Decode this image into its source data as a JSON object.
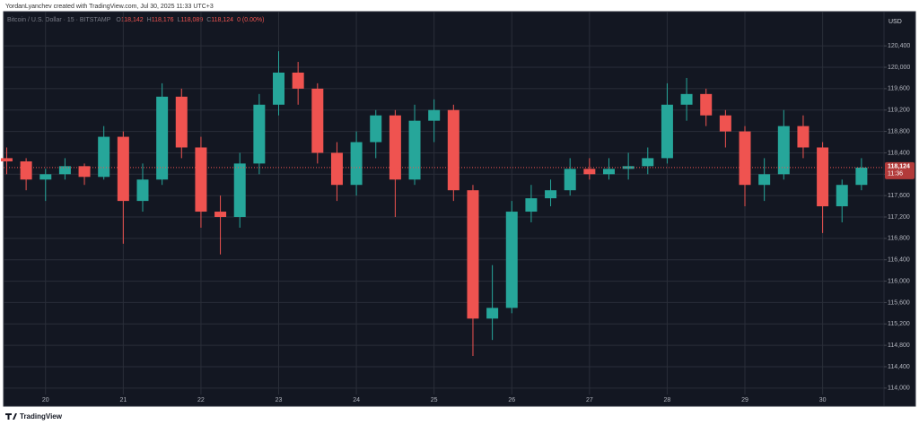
{
  "header": "YordanLyanchev created with TradingView.com, Jul 30, 2025 11:33 UTC+3",
  "footer": "TradingView",
  "chart_data": {
    "type": "candlestick",
    "symbol": "Bitcoin / U.S. Dollar · 15 · BITSTAMP",
    "legend": [
      {
        "key": "O",
        "value": 118142,
        "label": "118,142"
      },
      {
        "key": "H",
        "value": 118176,
        "label": "118,176"
      },
      {
        "key": "L",
        "value": 118089,
        "label": "118,089"
      },
      {
        "key": "C",
        "value": 118124,
        "label": "118,124"
      }
    ],
    "change": {
      "value": 0,
      "label": "0 (0.00%)"
    },
    "currency": "USD",
    "last_price": {
      "value": 118124,
      "label": "118,124"
    },
    "countdown": "11:36",
    "up_color": "#26a69a",
    "down_color": "#ef5350",
    "grid": true,
    "x": [
      19.5,
      19.75,
      20,
      20.25,
      20.5,
      20.75,
      21,
      21.25,
      21.5,
      21.75,
      22,
      22.25,
      22.5,
      22.75,
      23,
      23.25,
      23.5,
      23.75,
      24,
      24.25,
      24.5,
      24.75,
      25,
      25.25,
      25.5,
      25.75,
      26,
      26.25,
      26.5,
      26.75,
      27,
      27.25,
      27.5,
      27.75,
      28,
      28.25,
      28.5,
      28.75,
      29,
      29.25,
      29.5,
      29.75,
      30,
      30.25,
      30.5
    ],
    "open": [
      118300,
      118240,
      117900,
      118000,
      118150,
      117950,
      118700,
      117500,
      117900,
      119450,
      118500,
      117300,
      117200,
      118200,
      119300,
      119900,
      119600,
      118400,
      117800,
      118600,
      119100,
      117900,
      119000,
      119200,
      117700,
      115300,
      115500,
      117300,
      117550,
      117700,
      118100,
      118000,
      118100,
      118150,
      118300,
      119300,
      119500,
      119100,
      118800,
      117800,
      118000,
      118900,
      118500,
      117400,
      117800
    ],
    "high": [
      118500,
      118300,
      118100,
      118300,
      118200,
      118900,
      118800,
      118200,
      119700,
      119600,
      118700,
      117600,
      118400,
      119500,
      120300,
      120100,
      119700,
      118600,
      118800,
      119200,
      119200,
      119300,
      119400,
      119300,
      117800,
      116300,
      117500,
      117800,
      117900,
      118300,
      118300,
      118300,
      118400,
      118500,
      119700,
      119800,
      119600,
      119200,
      118900,
      118300,
      119200,
      119100,
      118600,
      117900,
      118300
    ],
    "low": [
      118000,
      117700,
      117500,
      117900,
      117800,
      117900,
      116700,
      117300,
      117800,
      118300,
      117000,
      116500,
      117000,
      118000,
      119100,
      119300,
      118200,
      117500,
      117600,
      118300,
      117200,
      117800,
      118600,
      117500,
      114600,
      114900,
      115400,
      117100,
      117400,
      117600,
      117900,
      117900,
      117900,
      118000,
      118200,
      119000,
      118900,
      118500,
      117400,
      117500,
      117900,
      118300,
      116900,
      117100,
      117700
    ],
    "close": [
      118240,
      117900,
      118000,
      118150,
      117950,
      118700,
      117500,
      117900,
      119450,
      118500,
      117300,
      117200,
      118200,
      119300,
      119900,
      119600,
      118400,
      117800,
      118600,
      119100,
      117900,
      119000,
      119200,
      117700,
      115300,
      115500,
      117300,
      117550,
      117700,
      118100,
      118000,
      118100,
      118150,
      118300,
      119300,
      119500,
      119100,
      118800,
      117800,
      118000,
      118900,
      118500,
      117400,
      117800,
      118124
    ],
    "xlim": [
      19.46,
      30.79
    ],
    "xticks": [
      20,
      21,
      22,
      23,
      24,
      25,
      26,
      27,
      28,
      29,
      30
    ],
    "ylim": [
      113880,
      121040
    ],
    "yticks": [
      {
        "value": 114000,
        "label": "114,000"
      },
      {
        "value": 114400,
        "label": "114,400"
      },
      {
        "value": 114800,
        "label": "114,800"
      },
      {
        "value": 115200,
        "label": "115,200"
      },
      {
        "value": 115600,
        "label": "115,600"
      },
      {
        "value": 116000,
        "label": "116,000"
      },
      {
        "value": 116400,
        "label": "116,400"
      },
      {
        "value": 116800,
        "label": "116,800"
      },
      {
        "value": 117200,
        "label": "117,200"
      },
      {
        "value": 117600,
        "label": "117,600"
      },
      {
        "value": 118000,
        "label": "118,000"
      },
      {
        "value": 118400,
        "label": "118,400"
      },
      {
        "value": 118800,
        "label": "118,800"
      },
      {
        "value": 119200,
        "label": "119,200"
      },
      {
        "value": 119600,
        "label": "119,600"
      },
      {
        "value": 120000,
        "label": "120,000"
      },
      {
        "value": 120400,
        "label": "120,400"
      }
    ]
  }
}
